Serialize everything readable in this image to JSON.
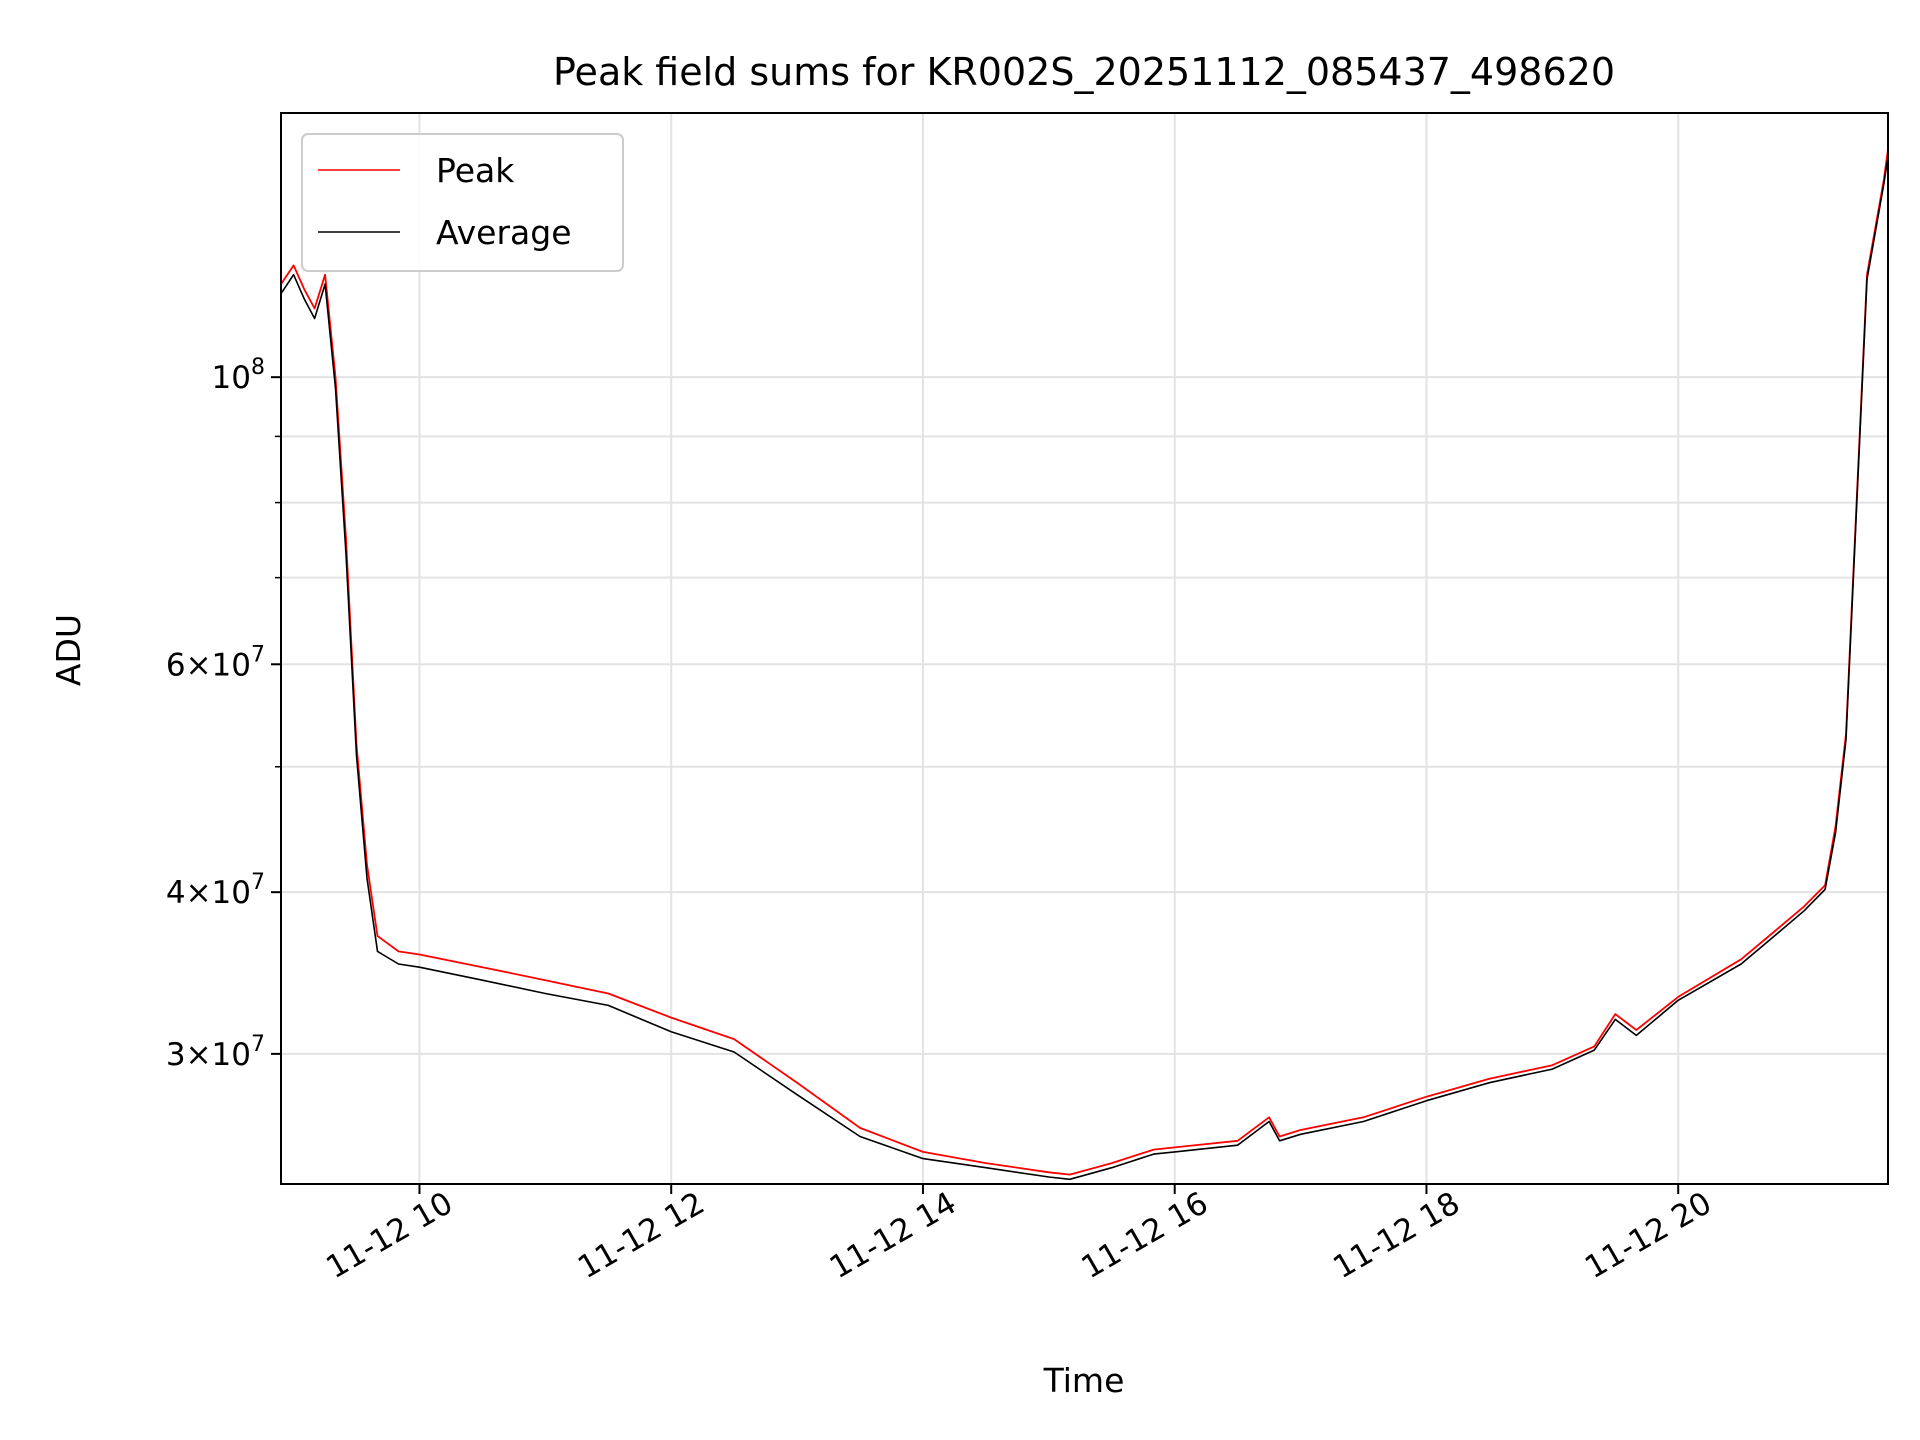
{
  "chart_data": {
    "type": "line",
    "title": "Peak field sums for KR002S_20251112_085437_498620",
    "xlabel": "Time",
    "ylabel": "ADU",
    "yscale": "log",
    "xlim": [
      "2025-11-12 08:54",
      "2025-11-12 21:40"
    ],
    "ylim": [
      23800000,
      160000000
    ],
    "grid": true,
    "legend_placement": "top-left",
    "x_ticks": [
      "11-12 10",
      "11-12 12",
      "11-12 14",
      "11-12 16",
      "11-12 18",
      "11-12 20"
    ],
    "y_ticks": [
      {
        "value": 100000000,
        "mant": "",
        "exp": "8"
      },
      {
        "value": 60000000,
        "mant": "6",
        "exp": "7"
      },
      {
        "value": 40000000,
        "mant": "4",
        "exp": "7"
      },
      {
        "value": 30000000,
        "mant": "3",
        "exp": "7"
      }
    ],
    "y_minor_ticks": [
      50000000,
      70000000,
      80000000,
      90000000
    ],
    "series": [
      {
        "name": "Peak",
        "color": "#ff0000",
        "x": [
          "2025-11-12 08:54",
          "2025-11-12 09:00",
          "2025-11-12 09:05",
          "2025-11-12 09:10",
          "2025-11-12 09:15",
          "2025-11-12 09:20",
          "2025-11-12 09:25",
          "2025-11-12 09:30",
          "2025-11-12 09:35",
          "2025-11-12 09:40",
          "2025-11-12 09:50",
          "2025-11-12 10:00",
          "2025-11-12 10:30",
          "2025-11-12 11:00",
          "2025-11-12 11:30",
          "2025-11-12 12:00",
          "2025-11-12 12:30",
          "2025-11-12 13:00",
          "2025-11-12 13:30",
          "2025-11-12 14:00",
          "2025-11-12 14:30",
          "2025-11-12 15:00",
          "2025-11-12 15:10",
          "2025-11-12 15:30",
          "2025-11-12 15:50",
          "2025-11-12 16:00",
          "2025-11-12 16:30",
          "2025-11-12 16:45",
          "2025-11-12 16:50",
          "2025-11-12 17:00",
          "2025-11-12 17:30",
          "2025-11-12 18:00",
          "2025-11-12 18:30",
          "2025-11-12 19:00",
          "2025-11-12 19:20",
          "2025-11-12 19:30",
          "2025-11-12 19:40",
          "2025-11-12 20:00",
          "2025-11-12 20:30",
          "2025-11-12 20:45",
          "2025-11-12 21:00",
          "2025-11-12 21:10",
          "2025-11-12 21:15",
          "2025-11-12 21:20",
          "2025-11-12 21:30",
          "2025-11-12 21:38",
          "2025-11-12 21:40"
        ],
        "values": [
          118000000,
          122000000,
          117000000,
          113000000,
          120000000,
          100000000,
          75000000,
          52000000,
          42000000,
          37000000,
          36000000,
          35800000,
          35000000,
          34200000,
          33400000,
          32000000,
          30800000,
          28500000,
          26300000,
          25200000,
          24700000,
          24300000,
          24200000,
          24700000,
          25300000,
          25400000,
          25700000,
          26800000,
          25900000,
          26200000,
          26800000,
          27800000,
          28700000,
          29400000,
          30400000,
          32200000,
          31300000,
          33200000,
          35500000,
          37200000,
          39000000,
          40500000,
          45000000,
          53000000,
          120000000,
          142000000,
          150000000
        ]
      },
      {
        "name": "Average",
        "color": "#000000",
        "x": [
          "2025-11-12 08:54",
          "2025-11-12 09:00",
          "2025-11-12 09:05",
          "2025-11-12 09:10",
          "2025-11-12 09:15",
          "2025-11-12 09:20",
          "2025-11-12 09:25",
          "2025-11-12 09:30",
          "2025-11-12 09:35",
          "2025-11-12 09:40",
          "2025-11-12 09:50",
          "2025-11-12 10:00",
          "2025-11-12 10:30",
          "2025-11-12 11:00",
          "2025-11-12 11:30",
          "2025-11-12 12:00",
          "2025-11-12 12:30",
          "2025-11-12 13:00",
          "2025-11-12 13:30",
          "2025-11-12 14:00",
          "2025-11-12 14:30",
          "2025-11-12 15:00",
          "2025-11-12 15:10",
          "2025-11-12 15:30",
          "2025-11-12 15:50",
          "2025-11-12 16:00",
          "2025-11-12 16:30",
          "2025-11-12 16:45",
          "2025-11-12 16:50",
          "2025-11-12 17:00",
          "2025-11-12 17:30",
          "2025-11-12 18:00",
          "2025-11-12 18:30",
          "2025-11-12 19:00",
          "2025-11-12 19:20",
          "2025-11-12 19:30",
          "2025-11-12 19:40",
          "2025-11-12 20:00",
          "2025-11-12 20:30",
          "2025-11-12 20:45",
          "2025-11-12 21:00",
          "2025-11-12 21:10",
          "2025-11-12 21:15",
          "2025-11-12 21:20",
          "2025-11-12 21:30",
          "2025-11-12 21:38",
          "2025-11-12 21:40"
        ],
        "values": [
          116000000,
          120000000,
          115000000,
          111000000,
          118000000,
          98000000,
          73000000,
          51000000,
          41000000,
          36000000,
          35200000,
          35000000,
          34200000,
          33400000,
          32700000,
          31200000,
          30100000,
          27900000,
          25900000,
          24900000,
          24500000,
          24100000,
          24000000,
          24500000,
          25100000,
          25200000,
          25500000,
          26600000,
          25700000,
          26000000,
          26600000,
          27600000,
          28500000,
          29200000,
          30200000,
          31900000,
          31000000,
          33000000,
          35200000,
          36900000,
          38700000,
          40200000,
          44500000,
          52500000,
          119000000,
          141000000,
          148000000
        ]
      }
    ]
  }
}
